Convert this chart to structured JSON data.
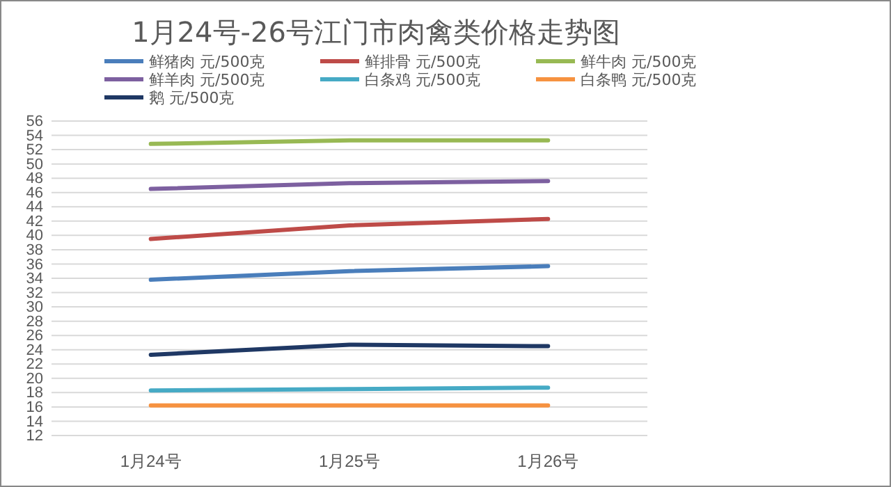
{
  "chart_data": {
    "type": "line",
    "title": "1月24号-26号江门市肉禽类价格走势图",
    "categories": [
      "1月24号",
      "1月25号",
      "1月26号"
    ],
    "series": [
      {
        "name": "鲜猪肉 元/500克",
        "color": "#4a7ebb",
        "values": [
          33.8,
          35.0,
          35.7
        ]
      },
      {
        "name": "鲜排骨 元/500克",
        "color": "#be4b48",
        "values": [
          39.5,
          41.4,
          42.3
        ]
      },
      {
        "name": "鲜牛肉 元/500克",
        "color": "#98b954",
        "values": [
          52.8,
          53.3,
          53.3
        ]
      },
      {
        "name": "鲜羊肉 元/500克",
        "color": "#7d60a0",
        "values": [
          46.5,
          47.3,
          47.6
        ]
      },
      {
        "name": "白条鸡 元/500克",
        "color": "#46aac5",
        "values": [
          18.3,
          18.5,
          18.7
        ]
      },
      {
        "name": "白条鸭 元/500克",
        "color": "#f69240",
        "values": [
          16.2,
          16.2,
          16.2
        ]
      },
      {
        "name": "鹅 元/500克",
        "color": "#1f3864",
        "values": [
          23.3,
          24.7,
          24.5
        ]
      }
    ],
    "ylim": [
      12,
      56
    ],
    "yticks": [
      12,
      14,
      16,
      18,
      20,
      22,
      24,
      26,
      28,
      30,
      32,
      34,
      36,
      38,
      40,
      42,
      44,
      46,
      48,
      50,
      52,
      54,
      56
    ],
    "grid": "y",
    "legend": "top",
    "marker": "none",
    "line_style": "solid"
  }
}
